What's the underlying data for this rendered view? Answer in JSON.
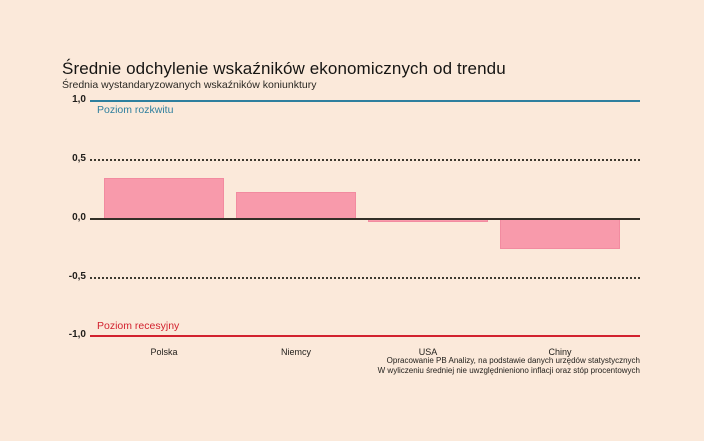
{
  "page": {
    "background_color": "#fbe9da"
  },
  "chart_data": {
    "type": "bar",
    "title": "Średnie odchylenie wskaźników ekonomicznych od trendu",
    "subtitle": "Średnia wystandaryzowanych wskaźników koniunktury",
    "categories": [
      "Polska",
      "Niemcy",
      "USA",
      "Chiny"
    ],
    "values": [
      0.35,
      0.23,
      -0.03,
      -0.26
    ],
    "ylim": [
      -1.0,
      1.0
    ],
    "xlabel": "",
    "ylabel": "",
    "legend": "none",
    "grid": "dotted reference lines at +0.5 and -0.5",
    "bar_color": "#f89aab",
    "bar_border_color": "#f28ba0",
    "reference_lines": [
      {
        "value": 1.0,
        "tick": "1,0",
        "label": "Poziom rozkwitu",
        "color": "#2e7f9e",
        "style": "solid"
      },
      {
        "value": 0.5,
        "tick": "0,5",
        "label": "",
        "color": "#3d392f",
        "style": "dotted"
      },
      {
        "value": 0.0,
        "tick": "0,0",
        "label": "",
        "color": "#332f27",
        "style": "solid"
      },
      {
        "value": -0.5,
        "tick": "-0,5",
        "label": "",
        "color": "#3d392f",
        "style": "dotted"
      },
      {
        "value": -1.0,
        "tick": "-1,0",
        "label": "Poziom recesyjny",
        "color": "#d2212e",
        "style": "solid"
      }
    ],
    "source": [
      "Opracowanie PB Analizy, na podstawie danych urzędów statystycznych",
      "W wyliczeniu średniej nie uwzględnieniono inflacji oraz stóp procentowych"
    ]
  }
}
